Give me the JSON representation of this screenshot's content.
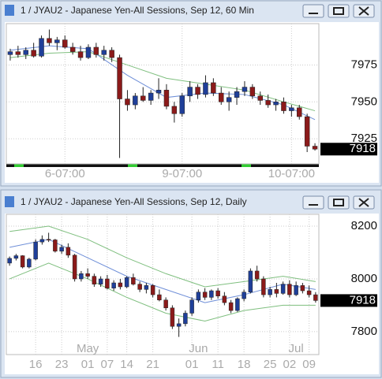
{
  "chart_data": [
    {
      "type": "candlestick",
      "title": "1 / JYAU2 - Japanese Yen-All Sessions, Sep 12, 60 Min",
      "categories": [
        null,
        null,
        null,
        null,
        null,
        null,
        null,
        "6-07:00",
        null,
        null,
        null,
        null,
        null,
        null,
        null,
        null,
        null,
        null,
        null,
        null,
        null,
        null,
        "9-07:00",
        null,
        null,
        null,
        null,
        null,
        null,
        null,
        null,
        null,
        null,
        null,
        null,
        null,
        "10-07:00",
        null,
        null,
        null
      ],
      "open": [
        7982,
        7984,
        7982,
        7985,
        7981,
        7993,
        7990,
        7992,
        7987,
        7984,
        7980,
        7987,
        7982,
        7985,
        7980,
        7952,
        7948,
        7954,
        7951,
        7956,
        7958,
        7947,
        7942,
        7954,
        7960,
        7955,
        7963,
        7956,
        7950,
        7953,
        7957,
        7960,
        7954,
        7951,
        7948,
        7950,
        7944,
        7946,
        7940,
        7920
      ],
      "high": [
        7986,
        7988,
        7987,
        7990,
        7995,
        7999,
        7994,
        7995,
        7990,
        7988,
        7989,
        7990,
        7988,
        7987,
        7982,
        7958,
        7956,
        7960,
        7958,
        7966,
        7962,
        7950,
        7956,
        7964,
        7962,
        7968,
        7966,
        7960,
        7957,
        7960,
        7964,
        7962,
        7957,
        7955,
        7952,
        7953,
        7948,
        7948,
        7942,
        7922
      ],
      "low": [
        7978,
        7980,
        7979,
        7980,
        7980,
        7988,
        7985,
        7986,
        7982,
        7978,
        7979,
        7980,
        7978,
        7977,
        7912,
        7944,
        7945,
        7950,
        7948,
        7952,
        7945,
        7936,
        7940,
        7950,
        7952,
        7953,
        7954,
        7948,
        7944,
        7948,
        7954,
        7952,
        7948,
        7946,
        7944,
        7942,
        7940,
        7938,
        7916,
        7917
      ],
      "close": [
        7984,
        7982,
        7985,
        7981,
        7993,
        7990,
        7992,
        7987,
        7984,
        7980,
        7987,
        7982,
        7985,
        7980,
        7952,
        7948,
        7954,
        7951,
        7956,
        7958,
        7947,
        7942,
        7954,
        7960,
        7955,
        7963,
        7956,
        7950,
        7953,
        7957,
        7960,
        7954,
        7951,
        7948,
        7950,
        7944,
        7946,
        7940,
        7920,
        7918
      ],
      "up_color": "#1f3f99",
      "down_color": "#8b1a1a",
      "lines": [
        {
          "color": "#7fbf7f",
          "x": [
            0,
            5,
            10,
            15,
            20,
            25,
            30,
            35,
            39
          ],
          "values": [
            7980,
            7983,
            7984,
            7975,
            7966,
            7962,
            7958,
            7950,
            7944
          ]
        },
        {
          "color": "#6f8fd8",
          "x": [
            0,
            5,
            10,
            15,
            20,
            25,
            30,
            35,
            39
          ],
          "values": [
            7985,
            7988,
            7986,
            7968,
            7953,
            7956,
            7955,
            7948,
            7938
          ]
        }
      ],
      "ylim": [
        7908,
        8003
      ],
      "yticks": [
        7925,
        7950,
        7975
      ],
      "grid": true,
      "last": 7918
    },
    {
      "type": "candlestick",
      "title": "1 / JYAU2 - Japanese Yen-All Sessions, Sep 12, Daily",
      "categories": [
        null,
        null,
        null,
        null,
        "16",
        null,
        null,
        null,
        "23",
        null,
        null,
        null,
        "01",
        null,
        null,
        "07",
        null,
        null,
        "14",
        null,
        null,
        null,
        "21",
        null,
        null,
        null,
        null,
        null,
        "01",
        null,
        null,
        null,
        "11",
        null,
        null,
        null,
        "18",
        null,
        null,
        null,
        "25",
        null,
        null,
        "02",
        null,
        null,
        "09",
        null
      ],
      "months": [
        null,
        null,
        null,
        null,
        null,
        null,
        null,
        null,
        null,
        null,
        null,
        null,
        "May",
        null,
        null,
        null,
        null,
        null,
        null,
        null,
        null,
        null,
        null,
        null,
        null,
        null,
        null,
        null,
        null,
        "Jun",
        null,
        null,
        null,
        null,
        null,
        null,
        null,
        null,
        null,
        null,
        null,
        null,
        null,
        null,
        "Jul",
        null,
        null,
        null
      ],
      "open": [
        8060,
        8078,
        8088,
        8045,
        8075,
        8140,
        8150,
        8148,
        8105,
        8120,
        8090,
        8000,
        8020,
        8010,
        7980,
        8000,
        7965,
        7985,
        7970,
        8005,
        7980,
        7960,
        7975,
        7940,
        7920,
        7890,
        7820,
        7830,
        7870,
        7920,
        7950,
        7930,
        7955,
        7935,
        7910,
        7880,
        7925,
        7950,
        8030,
        8000,
        7940,
        7960,
        7945,
        7980,
        7940,
        7975,
        7955,
        7940
      ],
      "high": [
        8085,
        8095,
        8090,
        8080,
        8150,
        8165,
        8175,
        8152,
        8130,
        8135,
        8095,
        8030,
        8040,
        8020,
        8010,
        8015,
        7995,
        8000,
        8010,
        8020,
        7990,
        7985,
        7980,
        7960,
        7930,
        7900,
        7850,
        7880,
        7930,
        7960,
        7965,
        7960,
        7965,
        7950,
        7920,
        7930,
        7960,
        8040,
        8050,
        8010,
        7970,
        7985,
        7990,
        7995,
        7990,
        7985,
        7975,
        7950
      ],
      "low": [
        8050,
        8070,
        8040,
        8040,
        8070,
        8130,
        8140,
        8100,
        8095,
        8080,
        7990,
        7990,
        8000,
        7970,
        7970,
        7960,
        7955,
        7960,
        7965,
        7975,
        7950,
        7945,
        7930,
        7915,
        7880,
        7810,
        7780,
        7820,
        7860,
        7910,
        7920,
        7920,
        7925,
        7900,
        7870,
        7875,
        7915,
        7945,
        7990,
        7930,
        7930,
        7930,
        7940,
        7930,
        7935,
        7945,
        7930,
        7910
      ],
      "close": [
        8078,
        8088,
        8045,
        8075,
        8140,
        8150,
        8148,
        8105,
        8120,
        8090,
        8000,
        8020,
        8010,
        7980,
        8000,
        7965,
        7985,
        7970,
        8005,
        7980,
        7960,
        7975,
        7940,
        7920,
        7890,
        7820,
        7830,
        7870,
        7920,
        7950,
        7930,
        7955,
        7935,
        7910,
        7880,
        7925,
        7950,
        8030,
        8000,
        7940,
        7960,
        7945,
        7980,
        7940,
        7975,
        7955,
        7940,
        7918
      ],
      "up_color": "#1f3f99",
      "down_color": "#8b1a1a",
      "lines": [
        {
          "color": "#7fbf7f",
          "x": [
            0,
            6,
            12,
            18,
            24,
            30,
            36,
            42,
            47
          ],
          "values": [
            8180,
            8200,
            8150,
            8080,
            8020,
            7970,
            7990,
            8010,
            7990
          ]
        },
        {
          "color": "#6f8fd8",
          "x": [
            0,
            6,
            12,
            18,
            24,
            30,
            36,
            42,
            47
          ],
          "values": [
            8120,
            8150,
            8080,
            8010,
            7960,
            7910,
            7940,
            7980,
            7960
          ]
        },
        {
          "color": "#7fbf7f",
          "x": [
            0,
            6,
            12,
            18,
            24,
            30,
            36,
            42,
            47
          ],
          "values": [
            8000,
            8060,
            8000,
            7930,
            7870,
            7840,
            7880,
            7900,
            7900
          ]
        }
      ],
      "ylim": [
        7713,
        8245
      ],
      "yticks": [
        7800,
        8000,
        8200
      ],
      "grid": true,
      "last": 7918
    }
  ]
}
